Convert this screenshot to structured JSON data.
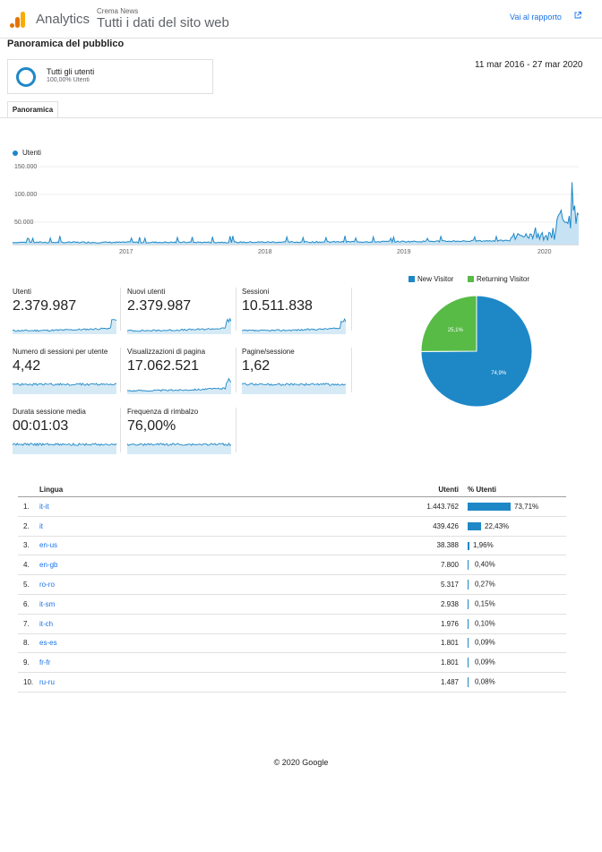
{
  "header": {
    "app_name": "Analytics",
    "property_name": "Crema News",
    "view_name": "Tutti i dati del sito web",
    "report_link": "Vai al rapporto"
  },
  "page": {
    "title": "Panoramica del pubblico",
    "date_range": "11 mar 2016 - 27 mar 2020",
    "tab": "Panoramica"
  },
  "segment": {
    "name": "Tutti gli utenti",
    "percentage": "100,00% Utenti"
  },
  "colors": {
    "accent": "#1e88c7",
    "returning": "#57bb46",
    "link": "#1a73e8"
  },
  "chart_data": [
    {
      "type": "line",
      "series": [
        {
          "name": "Utenti",
          "description_shape": "low baseline around 3.000-8.000 rising gradually, spikes late 2019 and a peak near 120.000 in March 2020"
        }
      ],
      "x_tick_labels": [
        "2017",
        "2018",
        "2019",
        "2020"
      ],
      "y_tick_labels": [
        "150.000",
        "100.000",
        "50.000"
      ],
      "ylim": [
        0,
        150000
      ],
      "peak_value": 120000
    },
    {
      "type": "pie",
      "categories": [
        "New Visitor",
        "Returning Visitor"
      ],
      "values": [
        74.9,
        25.1
      ],
      "labels": [
        "74,9%",
        "25,1%"
      ]
    }
  ],
  "metrics": [
    {
      "label": "Utenti",
      "value": "2.379.987"
    },
    {
      "label": "Nuovi utenti",
      "value": "2.379.987"
    },
    {
      "label": "Sessioni",
      "value": "10.511.838"
    },
    {
      "label": "Numero di sessioni per utente",
      "value": "4,42"
    },
    {
      "label": "Visualizzazioni di pagina",
      "value": "17.062.521"
    },
    {
      "label": "Pagine/sessione",
      "value": "1,62"
    },
    {
      "label": "Durata sessione media",
      "value": "00:01:03"
    },
    {
      "label": "Frequenza di rimbalzo",
      "value": "76,00%"
    }
  ],
  "table": {
    "headers": {
      "language": "Lingua",
      "users": "Utenti",
      "pct": "% Utenti"
    },
    "rows": [
      {
        "idx": "1.",
        "lang": "it-it",
        "users": "1.443.762",
        "pct": "73,71%",
        "share": 73.71
      },
      {
        "idx": "2.",
        "lang": "it",
        "users": "439.426",
        "pct": "22,43%",
        "share": 22.43
      },
      {
        "idx": "3.",
        "lang": "en-us",
        "users": "38.388",
        "pct": "1,96%",
        "share": 1.96
      },
      {
        "idx": "4.",
        "lang": "en-gb",
        "users": "7.800",
        "pct": "0,40%",
        "share": 0.4
      },
      {
        "idx": "5.",
        "lang": "ro-ro",
        "users": "5.317",
        "pct": "0,27%",
        "share": 0.27
      },
      {
        "idx": "6.",
        "lang": "it-sm",
        "users": "2.938",
        "pct": "0,15%",
        "share": 0.15
      },
      {
        "idx": "7.",
        "lang": "it-ch",
        "users": "1.976",
        "pct": "0,10%",
        "share": 0.1
      },
      {
        "idx": "8.",
        "lang": "es-es",
        "users": "1.801",
        "pct": "0,09%",
        "share": 0.09
      },
      {
        "idx": "9.",
        "lang": "fr-fr",
        "users": "1.801",
        "pct": "0,09%",
        "share": 0.09
      },
      {
        "idx": "10.",
        "lang": "ru-ru",
        "users": "1.487",
        "pct": "0,08%",
        "share": 0.08
      }
    ]
  },
  "footer": "© 2020 Google"
}
